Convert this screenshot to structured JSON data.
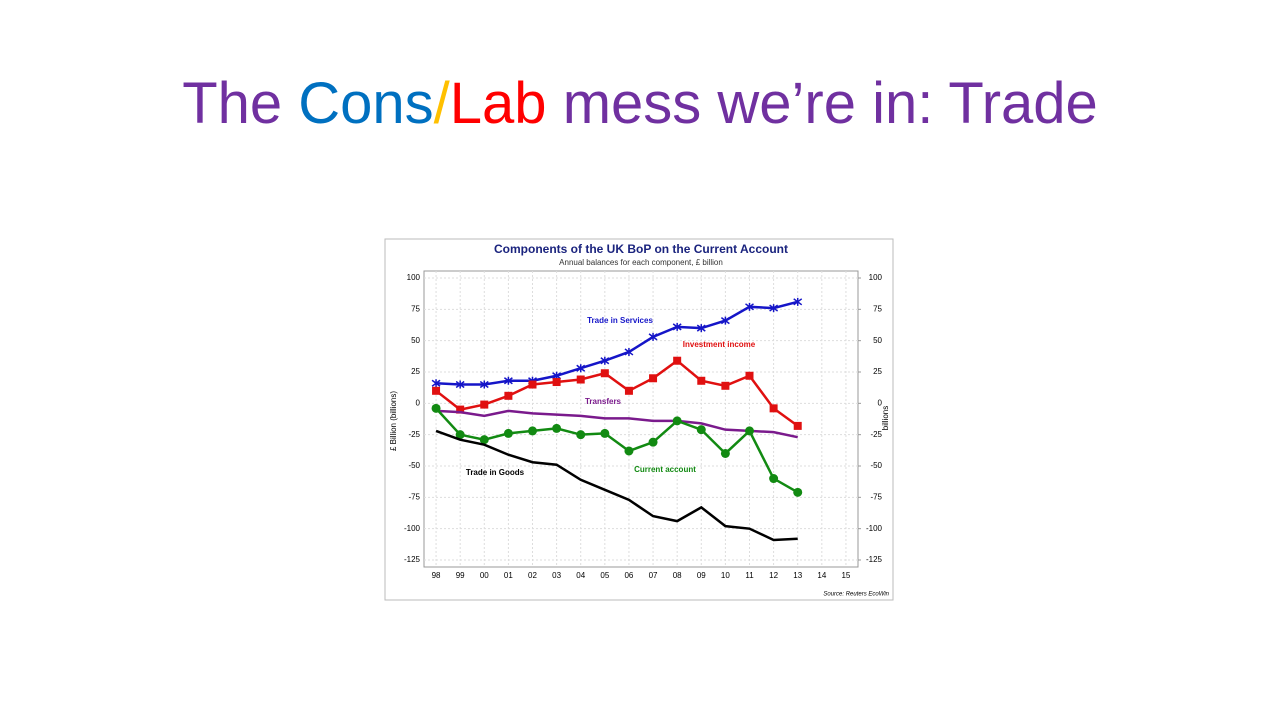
{
  "slide_title": [
    {
      "text": "The ",
      "color": "#7030a0"
    },
    {
      "text": "Cons",
      "color": "#0070c0"
    },
    {
      "text": "/",
      "color": "#ffc000"
    },
    {
      "text": "Lab",
      "color": "#ff0000"
    },
    {
      "text": " mess we’re in: Trade",
      "color": "#7030a0"
    }
  ],
  "chart_data": {
    "type": "line",
    "title": "Components of the UK BoP on the Current Account",
    "subtitle": "Annual balances for each component, £ billion",
    "y_label": "£ Billion (billions)",
    "y2_label": "billions",
    "source": "Source: Reuters EcoWin",
    "categories": [
      "98",
      "99",
      "00",
      "01",
      "02",
      "03",
      "04",
      "05",
      "06",
      "07",
      "08",
      "09",
      "10",
      "11",
      "12",
      "13",
      "14",
      "15"
    ],
    "ylim": [
      -125,
      100
    ],
    "yticks": [
      -125,
      -100,
      -75,
      -50,
      -25,
      0,
      25,
      50,
      75,
      100
    ],
    "y2lim": [
      -125,
      100
    ],
    "y2ticks": [
      -125,
      -100,
      -75,
      -50,
      -25,
      0,
      25,
      50,
      75,
      100
    ],
    "grid": true,
    "series": [
      {
        "name": "Trade in Services",
        "color": "#1515c8",
        "marker": "star",
        "values": [
          16,
          15,
          15,
          18,
          18,
          22,
          28,
          34,
          41,
          53,
          61,
          60,
          66,
          77,
          76,
          81,
          null,
          null
        ]
      },
      {
        "name": "Investment income",
        "color": "#e01010",
        "marker": "square",
        "values": [
          10,
          -5,
          -1,
          6,
          15,
          17,
          19,
          24,
          10,
          20,
          34,
          18,
          14,
          22,
          -4,
          -18,
          null,
          null
        ]
      },
      {
        "name": "Transfers",
        "color": "#7a1a8c",
        "marker": "none",
        "values": [
          -6,
          -7,
          -10,
          -6,
          -8,
          -9,
          -10,
          -12,
          -12,
          -14,
          -14,
          -16,
          -21,
          -22,
          -23,
          -27,
          null,
          null
        ]
      },
      {
        "name": "Current account",
        "color": "#128a12",
        "marker": "circle",
        "values": [
          -4,
          -25,
          -29,
          -24,
          -22,
          -20,
          -25,
          -24,
          -38,
          -31,
          -14,
          -21,
          -40,
          -22,
          -60,
          -71,
          null,
          null
        ]
      },
      {
        "name": "Trade in Goods",
        "color": "#000000",
        "marker": "none",
        "values": [
          -22,
          -29,
          -33,
          -41,
          -47,
          -49,
          -61,
          -69,
          -77,
          -90,
          -94,
          -83,
          -98,
          -100,
          -109,
          -108,
          null,
          null
        ]
      }
    ]
  }
}
